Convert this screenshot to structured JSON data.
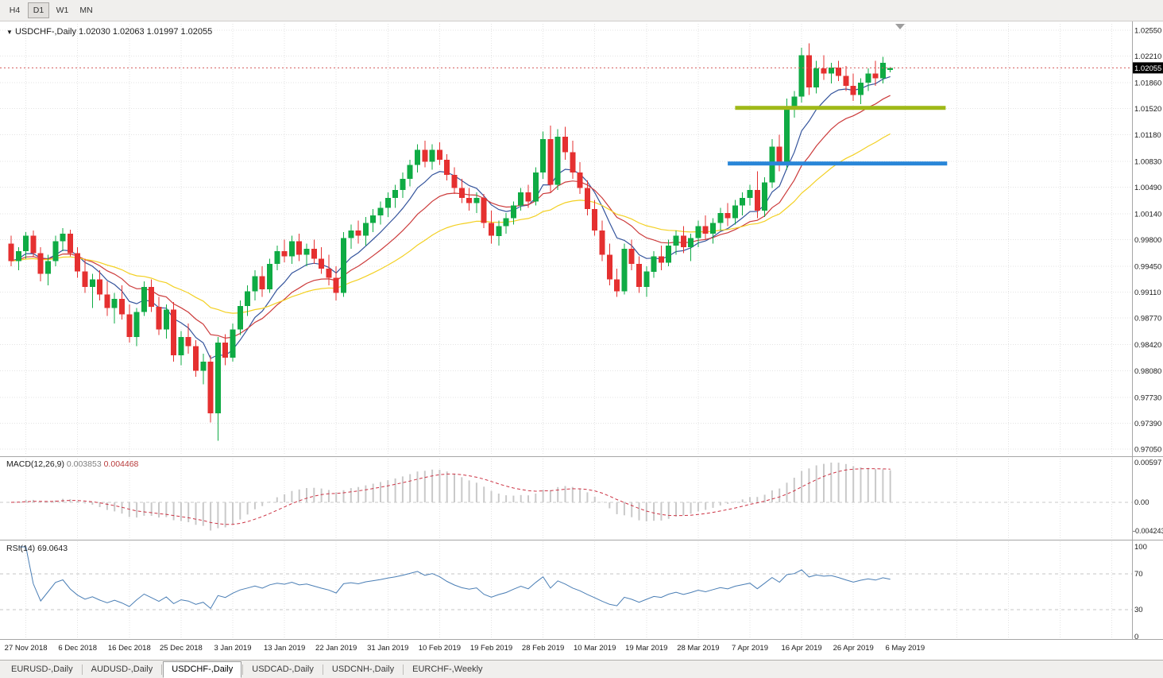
{
  "icons": {
    "dropdown": "▼"
  },
  "toolbar": {
    "timeframes": [
      {
        "label": "H4",
        "active": false
      },
      {
        "label": "D1",
        "active": true
      },
      {
        "label": "W1",
        "active": false
      },
      {
        "label": "MN",
        "active": false
      }
    ]
  },
  "chart_header": {
    "symbol_label": "USDCHF-,Daily",
    "ohlc_label": "1.02030 1.02063 1.01997 1.02055",
    "current_price_label": "1.02055"
  },
  "tabs": [
    {
      "label": "EURUSD-,Daily",
      "active": false
    },
    {
      "label": "AUDUSD-,Daily",
      "active": false
    },
    {
      "label": "USDCHF-,Daily",
      "active": true
    },
    {
      "label": "USDCAD-,Daily",
      "active": false
    },
    {
      "label": "USDCNH-,Daily",
      "active": false
    },
    {
      "label": "EURCHF-,Weekly",
      "active": false
    }
  ],
  "chart_data": {
    "type": "candlestick",
    "symbol": "USDCHF-",
    "timeframe": "Daily",
    "last_ohlc": {
      "open": 1.0203,
      "high": 1.02063,
      "low": 1.01997,
      "close": 1.02055
    },
    "current_price": 1.02055,
    "price_axis_ticks": [
      1.0255,
      1.0221,
      1.0186,
      1.0152,
      1.0118,
      1.0083,
      1.0049,
      1.0014,
      0.998,
      0.9945,
      0.9911,
      0.9877,
      0.9842,
      0.9808,
      0.9773,
      0.9739,
      0.9705
    ],
    "date_labels": [
      "27 Nov 2018",
      "6 Dec 2018",
      "16 Dec 2018",
      "25 Dec 2018",
      "3 Jan 2019",
      "13 Jan 2019",
      "22 Jan 2019",
      "31 Jan 2019",
      "10 Feb 2019",
      "19 Feb 2019",
      "28 Feb 2019",
      "10 Mar 2019",
      "19 Mar 2019",
      "28 Mar 2019",
      "7 Apr 2019",
      "16 Apr 2019",
      "26 Apr 2019",
      "6 May 2019"
    ],
    "date_label_start_bar": 2,
    "date_label_step": 7,
    "candles": [
      [
        0.9975,
        0.9985,
        0.9945,
        0.9952
      ],
      [
        0.9952,
        0.997,
        0.994,
        0.9965
      ],
      [
        0.9965,
        0.999,
        0.9955,
        0.9985
      ],
      [
        0.9985,
        0.9992,
        0.9958,
        0.9962
      ],
      [
        0.9962,
        0.997,
        0.9925,
        0.9935
      ],
      [
        0.9935,
        0.996,
        0.992,
        0.9952
      ],
      [
        0.9952,
        0.9985,
        0.9945,
        0.9978
      ],
      [
        0.9978,
        0.9995,
        0.9965,
        0.9988
      ],
      [
        0.9988,
        0.9993,
        0.9958,
        0.9962
      ],
      [
        0.9962,
        0.997,
        0.993,
        0.9938
      ],
      [
        0.9938,
        0.9955,
        0.991,
        0.9918
      ],
      [
        0.9918,
        0.9935,
        0.989,
        0.9928
      ],
      [
        0.9928,
        0.994,
        0.99,
        0.9908
      ],
      [
        0.9908,
        0.9925,
        0.988,
        0.989
      ],
      [
        0.989,
        0.991,
        0.987,
        0.9902
      ],
      [
        0.9902,
        0.992,
        0.9875,
        0.9882
      ],
      [
        0.9882,
        0.9895,
        0.9845,
        0.9852
      ],
      [
        0.9852,
        0.989,
        0.984,
        0.9885
      ],
      [
        0.9885,
        0.9925,
        0.988,
        0.9918
      ],
      [
        0.9918,
        0.9928,
        0.9885,
        0.9892
      ],
      [
        0.9892,
        0.9905,
        0.9855,
        0.9862
      ],
      [
        0.9862,
        0.9895,
        0.985,
        0.9888
      ],
      [
        0.9888,
        0.9898,
        0.982,
        0.9828
      ],
      [
        0.9828,
        0.986,
        0.9815,
        0.9852
      ],
      [
        0.9852,
        0.987,
        0.983,
        0.984
      ],
      [
        0.984,
        0.9848,
        0.98,
        0.9808
      ],
      [
        0.9808,
        0.983,
        0.979,
        0.982
      ],
      [
        0.982,
        0.9828,
        0.974,
        0.9752
      ],
      [
        0.9752,
        0.9852,
        0.9716,
        0.9845
      ],
      [
        0.9845,
        0.9856,
        0.9815,
        0.9825
      ],
      [
        0.9825,
        0.987,
        0.982,
        0.9862
      ],
      [
        0.9862,
        0.99,
        0.9855,
        0.9893
      ],
      [
        0.9893,
        0.992,
        0.988,
        0.9912
      ],
      [
        0.9912,
        0.994,
        0.99,
        0.9932
      ],
      [
        0.9932,
        0.9945,
        0.9905,
        0.9915
      ],
      [
        0.9915,
        0.9955,
        0.991,
        0.9948
      ],
      [
        0.9948,
        0.9972,
        0.994,
        0.9965
      ],
      [
        0.9965,
        0.998,
        0.995,
        0.9958
      ],
      [
        0.9958,
        0.9985,
        0.9948,
        0.9978
      ],
      [
        0.9978,
        0.9988,
        0.9952,
        0.996
      ],
      [
        0.996,
        0.9975,
        0.9945,
        0.9968
      ],
      [
        0.9968,
        0.998,
        0.9948,
        0.9955
      ],
      [
        0.9955,
        0.997,
        0.9935,
        0.9942
      ],
      [
        0.9942,
        0.996,
        0.992,
        0.993
      ],
      [
        0.993,
        0.9945,
        0.99,
        0.991
      ],
      [
        0.991,
        0.999,
        0.9905,
        0.9982
      ],
      [
        0.9982,
        1.0,
        0.9968,
        0.9992
      ],
      [
        0.9992,
        1.0005,
        0.9975,
        0.9985
      ],
      [
        0.9985,
        1.001,
        0.9972,
        1.0002
      ],
      [
        1.0002,
        1.002,
        0.999,
        1.0012
      ],
      [
        1.0012,
        1.003,
        1.0,
        1.0022
      ],
      [
        1.0022,
        1.0042,
        1.001,
        1.0035
      ],
      [
        1.0035,
        1.0052,
        1.0022,
        1.0045
      ],
      [
        1.0045,
        1.0068,
        1.0035,
        1.006
      ],
      [
        1.006,
        1.0085,
        1.005,
        1.0078
      ],
      [
        1.0078,
        1.0105,
        1.0068,
        1.0098
      ],
      [
        1.0098,
        1.011,
        1.0075,
        1.0082
      ],
      [
        1.0082,
        1.0105,
        1.0072,
        1.0098
      ],
      [
        1.0098,
        1.0108,
        1.0078,
        1.0085
      ],
      [
        1.0085,
        1.0092,
        1.0058,
        1.0065
      ],
      [
        1.0065,
        1.0075,
        1.004,
        1.0048
      ],
      [
        1.0048,
        1.006,
        1.0028,
        1.0035
      ],
      [
        1.0035,
        1.0048,
        1.0018,
        1.0028
      ],
      [
        1.0028,
        1.0042,
        1.0015,
        1.0035
      ],
      [
        1.0035,
        1.004,
        0.9995,
        1.0002
      ],
      [
        1.0002,
        1.0018,
        0.9975,
        0.9985
      ],
      [
        0.9985,
        1.0005,
        0.9972,
        0.9998
      ],
      [
        0.9998,
        1.0015,
        0.9988,
        1.0008
      ],
      [
        1.0008,
        1.003,
        1.0,
        1.0025
      ],
      [
        1.0025,
        1.0048,
        1.0018,
        1.0042
      ],
      [
        1.0042,
        1.0052,
        1.0022,
        1.003
      ],
      [
        1.003,
        1.0075,
        1.0025,
        1.0068
      ],
      [
        1.0068,
        1.0122,
        1.006,
        1.0112
      ],
      [
        1.0112,
        1.013,
        1.0042,
        1.0052
      ],
      [
        1.0052,
        1.0125,
        1.0045,
        1.0115
      ],
      [
        1.0115,
        1.0128,
        1.0085,
        1.0095
      ],
      [
        1.0095,
        1.011,
        1.006,
        1.0068
      ],
      [
        1.0068,
        1.0082,
        1.004,
        1.0048
      ],
      [
        1.0048,
        1.0058,
        1.0012,
        1.002
      ],
      [
        1.002,
        1.0032,
        0.9985,
        0.9992
      ],
      [
        0.9992,
        1.0005,
        0.9952,
        0.996
      ],
      [
        0.996,
        0.9975,
        0.992,
        0.9928
      ],
      [
        0.9928,
        0.9942,
        0.9905,
        0.9912
      ],
      [
        0.9912,
        0.9975,
        0.9908,
        0.9968
      ],
      [
        0.9968,
        0.998,
        0.994,
        0.9948
      ],
      [
        0.9948,
        0.9958,
        0.991,
        0.9918
      ],
      [
        0.9918,
        0.9945,
        0.9905,
        0.9938
      ],
      [
        0.9938,
        0.9965,
        0.993,
        0.9958
      ],
      [
        0.9958,
        0.9972,
        0.994,
        0.995
      ],
      [
        0.995,
        0.998,
        0.9945,
        0.9972
      ],
      [
        0.9972,
        0.9992,
        0.996,
        0.9985
      ],
      [
        0.9985,
        0.9998,
        0.9962,
        0.997
      ],
      [
        0.997,
        0.9988,
        0.9952,
        0.9982
      ],
      [
        0.9982,
        1.0005,
        0.997,
        0.9998
      ],
      [
        0.9998,
        1.0012,
        0.998,
        0.9988
      ],
      [
        0.9988,
        1.0008,
        0.9975,
        1.0002
      ],
      [
        1.0002,
        1.0022,
        0.9992,
        1.0015
      ],
      [
        1.0015,
        1.0028,
        0.9998,
        1.0008
      ],
      [
        1.0008,
        1.0032,
        1.0,
        1.0025
      ],
      [
        1.0025,
        1.0042,
        1.0012,
        1.0035
      ],
      [
        1.0035,
        1.0052,
        1.0025,
        1.0045
      ],
      [
        1.0045,
        1.007,
        1.0008,
        1.0018
      ],
      [
        1.0018,
        1.0062,
        1.001,
        1.0055
      ],
      [
        1.0055,
        1.0112,
        1.0048,
        1.0102
      ],
      [
        1.0102,
        1.0118,
        1.007,
        1.0078
      ],
      [
        1.0078,
        1.0165,
        1.0072,
        1.0155
      ],
      [
        1.0155,
        1.0175,
        1.014,
        1.0168
      ],
      [
        1.0168,
        1.0232,
        1.016,
        1.0222
      ],
      [
        1.0222,
        1.0238,
        1.017,
        1.018
      ],
      [
        1.018,
        1.0215,
        1.0172,
        1.0205
      ],
      [
        1.0205,
        1.0222,
        1.019,
        1.0198
      ],
      [
        1.0198,
        1.0212,
        1.0185,
        1.0206
      ],
      [
        1.0206,
        1.0215,
        1.0188,
        1.0195
      ],
      [
        1.0195,
        1.0208,
        1.0175,
        1.0182
      ],
      [
        1.0182,
        1.0198,
        1.0162,
        1.017
      ],
      [
        1.017,
        1.0192,
        1.0158,
        1.0186
      ],
      [
        1.0186,
        1.0205,
        1.0175,
        1.0198
      ],
      [
        1.0198,
        1.0215,
        1.0182,
        1.0192
      ],
      [
        1.0192,
        1.022,
        1.0185,
        1.0212
      ],
      [
        1.0203,
        1.02063,
        1.01997,
        1.02055
      ]
    ],
    "colors": {
      "bull": "#0fab44",
      "bear": "#e53030",
      "grid": "#e3e3e3",
      "ma_fast": "#34549c",
      "ma_mid": "#cc3b3b",
      "ma_slow": "#f3d022",
      "rsi_line": "#4a7eb5",
      "macd_hist": "#c9c9c9",
      "macd_signal": "#cc3344",
      "price_line": "#d55b5b",
      "badge_bg": "#000000",
      "badge_text": "#ffffff"
    },
    "moving_averages": [
      {
        "name": "fast",
        "period": 8,
        "color_key": "ma_fast"
      },
      {
        "name": "mid",
        "period": 16,
        "color_key": "ma_mid"
      },
      {
        "name": "slow",
        "period": 34,
        "color_key": "ma_slow"
      }
    ],
    "hlines": [
      {
        "name": "resistance-line",
        "price": 1.0153,
        "color": "#9fb918",
        "from_bar": 98,
        "to_bar": 126.5,
        "width": 5
      },
      {
        "name": "support-line",
        "price": 1.008,
        "color": "#2986d8",
        "from_bar": 97,
        "to_bar": 126.7,
        "width": 5
      }
    ],
    "macd": {
      "name": "MACD(12,26,9)",
      "fast": 12,
      "slow": 26,
      "signal": 9,
      "value_main": "0.003853",
      "value_signal": "0.004468",
      "axis_max": "0.00597",
      "axis_zero": "0.00",
      "axis_min": "-0.004243",
      "axis_max_val": 0.00597,
      "axis_min_val": -0.004243
    },
    "rsi": {
      "name": "RSI(14)",
      "period": 14,
      "value": "69.0643",
      "levels": [
        100,
        70,
        30,
        0
      ]
    }
  }
}
